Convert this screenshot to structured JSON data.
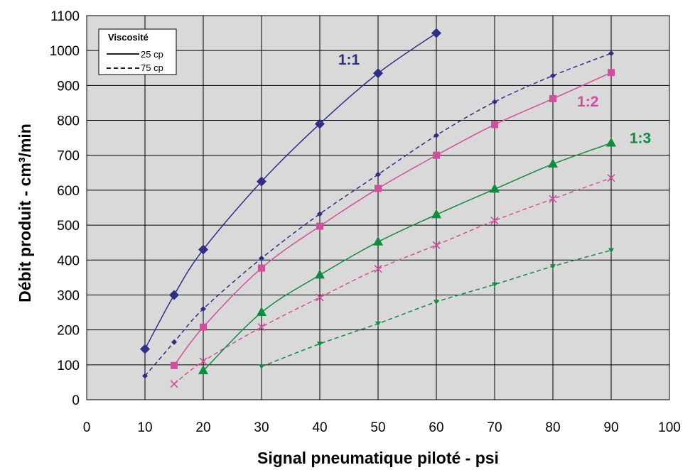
{
  "chart_data": {
    "type": "line",
    "title": "",
    "xlabel": "Signal pneumatique piloté - psi",
    "ylabel": "Débit produit - cm³/min",
    "xlim": [
      0,
      100
    ],
    "ylim": [
      0,
      1100
    ],
    "xticks": [
      0,
      10,
      20,
      30,
      40,
      50,
      60,
      70,
      80,
      90,
      100
    ],
    "yticks": [
      0,
      100,
      200,
      300,
      400,
      500,
      600,
      700,
      800,
      900,
      1000,
      1100
    ],
    "grid": true,
    "legend": {
      "title": "Viscosité",
      "placement": "top-left",
      "entries": [
        {
          "label": "25 cp",
          "style": "solid"
        },
        {
          "label": "75 cp",
          "style": "dashed"
        }
      ]
    },
    "annotations": [
      {
        "text": "1:1",
        "x": 45,
        "y": 960,
        "color": "#2e2f86"
      },
      {
        "text": "1:2",
        "x": 86,
        "y": 840,
        "color": "#d24d9e"
      },
      {
        "text": "1:3",
        "x": 95,
        "y": 735,
        "color": "#0b8f3c"
      }
    ],
    "series": [
      {
        "ratio": "1:1",
        "viscosity": "25 cp",
        "style": "solid",
        "marker": "diamond",
        "color": "#2e2f86",
        "x": [
          10,
          15,
          20,
          30,
          40,
          50,
          60
        ],
        "y": [
          145,
          300,
          430,
          625,
          790,
          935,
          1050
        ]
      },
      {
        "ratio": "1:1",
        "viscosity": "75 cp",
        "style": "dashed",
        "marker": "small-diamond",
        "color": "#2e2f86",
        "x": [
          10,
          15,
          20,
          30,
          40,
          50,
          60,
          70,
          80,
          90
        ],
        "y": [
          68,
          165,
          260,
          405,
          532,
          645,
          757,
          853,
          928,
          992
        ]
      },
      {
        "ratio": "1:2",
        "viscosity": "25 cp",
        "style": "solid",
        "marker": "square",
        "color": "#d24d9e",
        "x": [
          15,
          20,
          30,
          40,
          50,
          60,
          70,
          80,
          90
        ],
        "y": [
          98,
          208,
          377,
          497,
          605,
          700,
          788,
          862,
          937
        ]
      },
      {
        "ratio": "1:2",
        "viscosity": "75 cp",
        "style": "dashed",
        "marker": "x",
        "color": "#d24d9e",
        "x": [
          15,
          20,
          30,
          40,
          50,
          60,
          70,
          80,
          90
        ],
        "y": [
          45,
          110,
          208,
          293,
          375,
          443,
          513,
          575,
          635
        ]
      },
      {
        "ratio": "1:3",
        "viscosity": "25 cp",
        "style": "solid",
        "marker": "triangle",
        "color": "#0b8f3c",
        "x": [
          20,
          30,
          40,
          50,
          60,
          70,
          80,
          90
        ],
        "y": [
          83,
          250,
          357,
          452,
          530,
          603,
          675,
          735
        ]
      },
      {
        "ratio": "1:3",
        "viscosity": "75 cp",
        "style": "dashed",
        "marker": "small-triangle-down",
        "color": "#0b8f3c",
        "x": [
          30,
          40,
          50,
          60,
          70,
          80,
          90
        ],
        "y": [
          95,
          160,
          218,
          280,
          330,
          382,
          428
        ]
      }
    ]
  }
}
